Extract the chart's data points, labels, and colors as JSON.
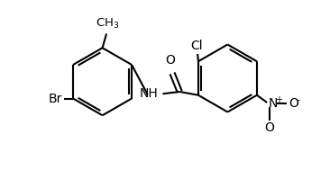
{
  "bg_color": "#ffffff",
  "line_color": "#000000",
  "bond_width": 1.5,
  "font_size": 10,
  "figsize": [
    3.66,
    1.89
  ],
  "dpi": 100,
  "xlim": [
    0,
    9.5
  ],
  "ylim": [
    0,
    5.0
  ]
}
